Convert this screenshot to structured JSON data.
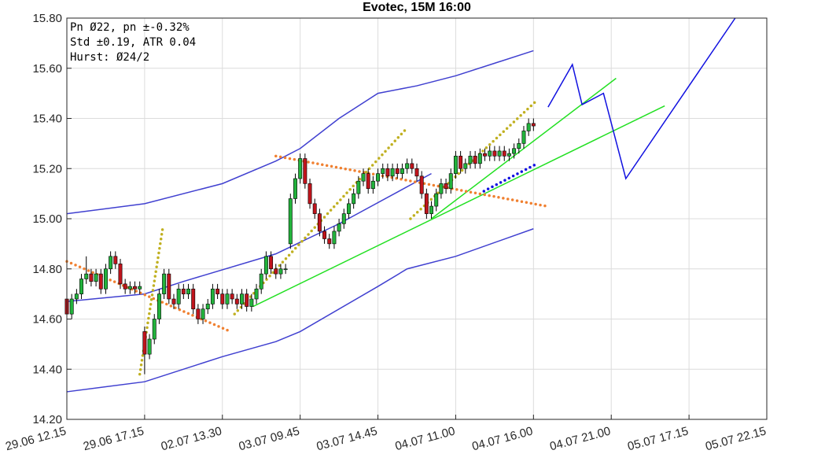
{
  "chart_data": {
    "type": "candlestick",
    "title": "Evotec, 15M 16:00",
    "annotations": [
      "Pn  Ø22, pn ±-0.32%",
      "Std ±0.19, ATR 0.04",
      "Hurst: Ø24/2"
    ],
    "up_color": "#22b33c",
    "down_color": "#c0141c",
    "x": [
      0,
      1,
      2,
      3,
      4,
      5,
      6,
      7,
      8,
      9,
      10,
      11,
      12,
      13,
      14,
      15,
      16,
      17,
      18,
      19,
      20,
      21,
      22,
      23,
      24,
      25,
      26,
      27,
      28,
      29,
      30,
      31,
      32,
      33,
      34,
      35,
      36,
      37,
      38,
      39,
      40,
      41,
      42,
      43,
      44,
      45,
      46,
      47,
      48,
      49,
      50,
      51,
      52,
      53,
      54,
      55,
      56,
      57,
      58,
      59,
      60,
      61,
      62,
      63,
      64,
      65,
      66,
      67,
      68,
      69,
      70,
      71,
      72,
      73,
      74,
      75,
      76,
      77,
      78,
      79,
      80,
      81,
      82,
      83,
      84,
      85,
      86,
      87,
      88,
      89,
      90,
      91,
      92,
      93,
      94,
      95,
      96
    ],
    "open": [
      14.68,
      14.62,
      14.68,
      14.7,
      14.76,
      14.78,
      14.75,
      14.78,
      14.72,
      14.8,
      14.85,
      14.82,
      14.74,
      14.72,
      14.73,
      14.72,
      14.55,
      14.46,
      14.52,
      14.6,
      14.7,
      14.78,
      14.68,
      14.66,
      14.72,
      14.7,
      14.72,
      14.64,
      14.6,
      14.64,
      14.66,
      14.72,
      14.7,
      14.66,
      14.7,
      14.68,
      14.66,
      14.7,
      14.65,
      14.68,
      14.72,
      14.78,
      14.85,
      14.8,
      14.78,
      14.8,
      14.9,
      15.08,
      15.16,
      15.24,
      15.14,
      15.06,
      15.02,
      14.95,
      14.92,
      14.9,
      14.95,
      14.98,
      15.02,
      15.06,
      15.1,
      15.15,
      15.18,
      15.12,
      15.15,
      15.18,
      15.2,
      15.17,
      15.2,
      15.18,
      15.2,
      15.22,
      15.2,
      15.17,
      15.1,
      15.02,
      15.05,
      15.1,
      15.14,
      15.12,
      15.18,
      15.25,
      15.2,
      15.22,
      15.25,
      15.22,
      15.26,
      15.25,
      15.27,
      15.25,
      15.27,
      15.25,
      15.26,
      15.28,
      15.3,
      15.35,
      15.38
    ],
    "high": [
      14.7,
      14.7,
      14.72,
      14.78,
      14.85,
      14.8,
      14.8,
      14.8,
      14.82,
      14.87,
      14.87,
      14.84,
      14.76,
      14.75,
      14.75,
      14.75,
      14.57,
      14.54,
      14.62,
      14.72,
      14.8,
      14.8,
      14.7,
      14.74,
      14.74,
      14.74,
      14.74,
      14.66,
      14.66,
      14.68,
      14.74,
      14.74,
      14.72,
      14.72,
      14.72,
      14.7,
      14.72,
      14.72,
      14.7,
      14.74,
      14.8,
      14.87,
      14.87,
      14.82,
      14.82,
      14.82,
      15.1,
      15.18,
      15.26,
      15.26,
      15.16,
      15.08,
      15.04,
      14.97,
      14.94,
      14.97,
      15.0,
      15.04,
      15.08,
      15.12,
      15.17,
      15.2,
      15.2,
      15.17,
      15.2,
      15.22,
      15.22,
      15.22,
      15.22,
      15.22,
      15.24,
      15.24,
      15.22,
      15.19,
      15.12,
      15.07,
      15.12,
      15.16,
      15.16,
      15.2,
      15.27,
      15.27,
      15.24,
      15.27,
      15.27,
      15.28,
      15.28,
      15.29,
      15.29,
      15.29,
      15.29,
      15.28,
      15.3,
      15.32,
      15.37,
      15.4,
      15.4
    ],
    "low": [
      14.6,
      14.6,
      14.66,
      14.68,
      14.74,
      14.73,
      14.73,
      14.7,
      14.7,
      14.78,
      14.8,
      14.72,
      14.7,
      14.7,
      14.7,
      14.7,
      14.38,
      14.44,
      14.5,
      14.58,
      14.68,
      14.66,
      14.64,
      14.64,
      14.68,
      14.68,
      14.62,
      14.58,
      14.58,
      14.62,
      14.64,
      14.68,
      14.64,
      14.64,
      14.66,
      14.64,
      14.64,
      14.63,
      14.63,
      14.66,
      14.7,
      14.76,
      14.78,
      14.76,
      14.76,
      14.78,
      14.88,
      15.06,
      15.14,
      15.12,
      15.04,
      15.0,
      14.93,
      14.9,
      14.88,
      14.88,
      14.93,
      14.96,
      15.0,
      15.04,
      15.08,
      15.13,
      15.1,
      15.1,
      15.13,
      15.16,
      15.15,
      15.15,
      15.16,
      15.16,
      15.18,
      15.18,
      15.15,
      15.08,
      15.0,
      15.0,
      15.03,
      15.08,
      15.1,
      15.1,
      15.16,
      15.18,
      15.18,
      15.2,
      15.2,
      15.2,
      15.23,
      15.23,
      15.23,
      15.23,
      15.23,
      15.23,
      15.24,
      15.26,
      15.28,
      15.33,
      15.35
    ],
    "close": [
      14.62,
      14.68,
      14.7,
      14.76,
      14.78,
      14.75,
      14.78,
      14.72,
      14.8,
      14.85,
      14.82,
      14.74,
      14.72,
      14.73,
      14.72,
      14.73,
      14.46,
      14.52,
      14.6,
      14.7,
      14.78,
      14.68,
      14.66,
      14.72,
      14.7,
      14.72,
      14.64,
      14.6,
      14.64,
      14.66,
      14.72,
      14.7,
      14.66,
      14.7,
      14.68,
      14.66,
      14.7,
      14.65,
      14.68,
      14.72,
      14.78,
      14.85,
      14.8,
      14.78,
      14.8,
      14.8,
      15.08,
      15.16,
      15.24,
      15.14,
      15.06,
      15.02,
      14.95,
      14.92,
      14.9,
      14.95,
      14.98,
      15.02,
      15.06,
      15.1,
      15.15,
      15.18,
      15.12,
      15.15,
      15.18,
      15.2,
      15.17,
      15.2,
      15.18,
      15.2,
      15.22,
      15.2,
      15.17,
      15.1,
      15.02,
      15.05,
      15.1,
      15.14,
      15.12,
      15.18,
      15.25,
      15.2,
      15.22,
      15.25,
      15.22,
      15.26,
      15.25,
      15.27,
      15.25,
      15.27,
      15.25,
      15.26,
      15.28,
      15.3,
      15.35,
      15.38,
      15.37
    ],
    "lines": [
      {
        "color": "#4040d0",
        "style": "solid",
        "x": [
          0,
          16,
          32,
          43,
          48,
          56,
          64,
          72,
          80,
          88,
          96
        ],
        "values": [
          15.02,
          15.06,
          15.14,
          15.23,
          15.28,
          15.4,
          15.5,
          15.53,
          15.57,
          15.62,
          15.67
        ]
      },
      {
        "color": "#4040d0",
        "style": "solid",
        "x": [
          0,
          16,
          24,
          43,
          56,
          75
        ],
        "values": [
          14.67,
          14.7,
          14.75,
          14.86,
          14.98,
          15.18
        ]
      },
      {
        "color": "#4040d0",
        "style": "solid",
        "x": [
          0,
          16,
          32,
          43,
          48,
          64,
          70,
          80,
          96
        ],
        "values": [
          14.31,
          14.35,
          14.45,
          14.51,
          14.55,
          14.73,
          14.8,
          14.85,
          14.96
        ]
      },
      {
        "color": "#22e022",
        "style": "solid",
        "x": [
          38.3,
          123
        ],
        "values": [
          14.65,
          15.45
        ]
      },
      {
        "color": "#22e022",
        "style": "solid",
        "x": [
          75,
          113
        ],
        "values": [
          15.0,
          15.56
        ]
      },
      {
        "color": "#f08030",
        "style": "dotted",
        "x": [
          0,
          33.7
        ],
        "values": [
          14.83,
          14.55
        ]
      },
      {
        "color": "#f08030",
        "style": "dotted",
        "x": [
          43,
          98.7
        ],
        "values": [
          15.25,
          15.05
        ]
      },
      {
        "color": "#c0b020",
        "style": "dotted",
        "x": [
          15,
          19.7
        ],
        "values": [
          14.38,
          14.96
        ]
      },
      {
        "color": "#c0b020",
        "style": "dotted",
        "x": [
          34.5,
          69.9
        ],
        "values": [
          14.62,
          15.36
        ]
      },
      {
        "color": "#c0b020",
        "style": "dotted",
        "x": [
          70.7,
          96.6
        ],
        "values": [
          15.0,
          15.47
        ]
      },
      {
        "color": "#1010e0",
        "style": "dotted",
        "x": [
          85.8,
          96.8
        ],
        "values": [
          15.11,
          15.22
        ]
      },
      {
        "color": "#1010e0",
        "style": "solid",
        "x": [
          99,
          104,
          106,
          110.4,
          115,
          137.5
        ],
        "values": [
          15.445,
          15.615,
          15.455,
          15.5,
          15.16,
          15.8
        ]
      }
    ],
    "xlim": [
      0,
      144
    ],
    "xticks": [
      {
        "value": 0,
        "label": "29.06 12.15"
      },
      {
        "value": 16,
        "label": "29.06 17.15"
      },
      {
        "value": 32,
        "label": "02.07 13.30"
      },
      {
        "value": 48,
        "label": "03.07 09.45"
      },
      {
        "value": 64,
        "label": "03.07 14.45"
      },
      {
        "value": 80,
        "label": "04.07 11.00"
      },
      {
        "value": 96,
        "label": "04.07 16.00"
      },
      {
        "value": 112,
        "label": "04.07 21.00"
      },
      {
        "value": 128,
        "label": "05.07 17.15"
      },
      {
        "value": 144,
        "label": "05.07 22.15"
      }
    ],
    "ylim": [
      14.2,
      15.8
    ],
    "yticks": [
      {
        "value": 14.2,
        "label": "14.20"
      },
      {
        "value": 14.4,
        "label": "14.40"
      },
      {
        "value": 14.6,
        "label": "14.60"
      },
      {
        "value": 14.8,
        "label": "14.80"
      },
      {
        "value": 15.0,
        "label": "15.00"
      },
      {
        "value": 15.2,
        "label": "15.20"
      },
      {
        "value": 15.4,
        "label": "15.40"
      },
      {
        "value": 15.6,
        "label": "15.60"
      },
      {
        "value": 15.8,
        "label": "15.80"
      }
    ],
    "grid": true
  }
}
